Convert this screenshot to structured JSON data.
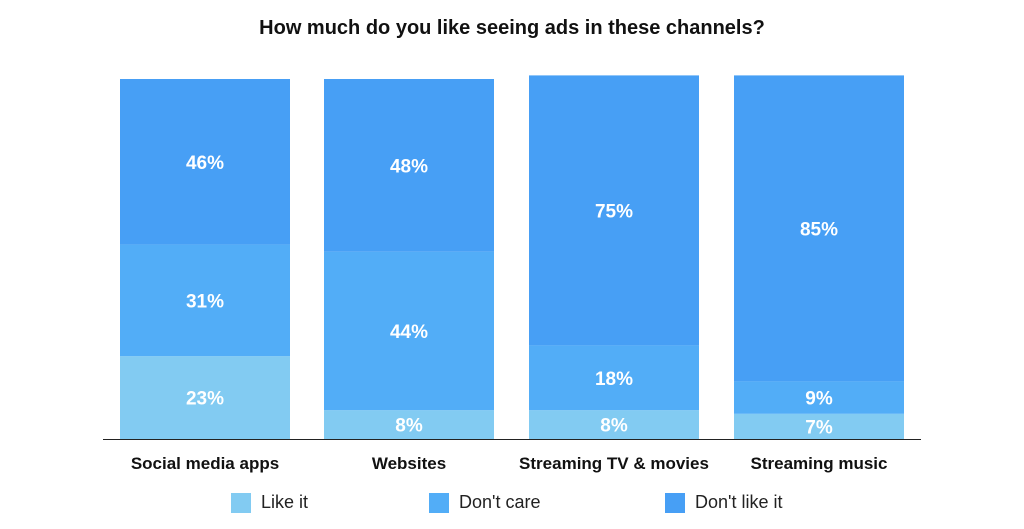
{
  "chart_data": {
    "type": "bar",
    "stacked": true,
    "percent": true,
    "title": "How much do you like seeing ads in these channels?",
    "categories": [
      "Social media apps",
      "Websites",
      "Streaming TV & movies",
      "Streaming music"
    ],
    "series": [
      {
        "name": "Like it",
        "color": "#82cbf2",
        "values": [
          23,
          8,
          8,
          7
        ]
      },
      {
        "name": "Don't care",
        "color": "#52adf7",
        "values": [
          31,
          44,
          18,
          9
        ]
      },
      {
        "name": "Don't like it",
        "color": "#479ff5",
        "values": [
          46,
          48,
          75,
          85
        ]
      }
    ],
    "ylim": [
      0,
      100
    ],
    "grid": false,
    "legend": "bottom"
  }
}
